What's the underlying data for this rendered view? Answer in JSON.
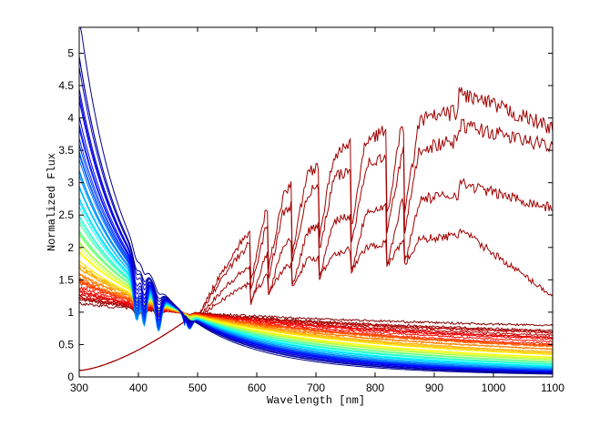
{
  "chart_data": {
    "type": "line",
    "title": "",
    "xlabel": "Wavelength [nm]",
    "ylabel": "Normalized Flux",
    "xlim": [
      300,
      1100
    ],
    "ylim": [
      0,
      5.4
    ],
    "xticks": [
      300,
      400,
      500,
      600,
      700,
      800,
      900,
      1000,
      1100
    ],
    "xtick_labels": [
      "300",
      "400",
      "500",
      "600",
      "700",
      "800",
      "900",
      "1000",
      "1100"
    ],
    "yticks": [
      0,
      0.5,
      1,
      1.5,
      2,
      2.5,
      3,
      3.5,
      4,
      4.5,
      5
    ],
    "ytick_labels": [
      "0",
      "0.5",
      "1",
      "1.5",
      "2",
      "2.5",
      "3",
      "3.5",
      "4",
      "4.5",
      "5"
    ],
    "grid": false,
    "legend": "none",
    "normalization_wavelength": 475,
    "series_colormap": [
      "#00008f",
      "#0000ff",
      "#0080ff",
      "#00ffff",
      "#80ff80",
      "#ffff00",
      "#ff8000",
      "#ff0000",
      "#800000"
    ],
    "series_count": 60,
    "approx_envelopes": {
      "hottest_flux_at_300": 5.4,
      "coolest_continuum_flux_at_1100": 0.75,
      "m_type_peak_flux_near_930": 4.4,
      "m_type_flux_at_1100": [
        3.85,
        3.55,
        2.6,
        1.25
      ]
    }
  }
}
